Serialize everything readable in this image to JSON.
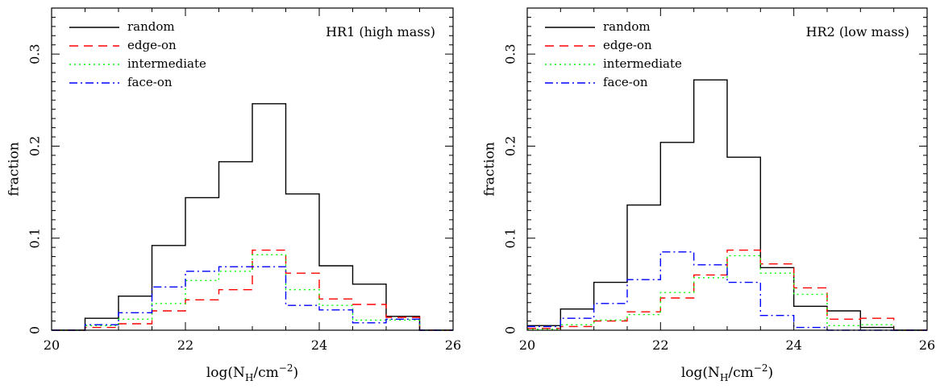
{
  "chart_data": [
    {
      "type": "histogram",
      "annotation": "HR1 (high mass)",
      "xlabel_main": "log(N",
      "xlabel_sub": "H",
      "xlabel_mid": "/cm",
      "xlabel_sup": "−2",
      "xlabel_end": ")",
      "ylabel": "fraction",
      "xlim": [
        20,
        26
      ],
      "ylim": [
        0,
        0.35
      ],
      "x_ticks": [
        20,
        22,
        24,
        26
      ],
      "y_ticks": [
        0,
        0.1,
        0.2,
        0.3
      ],
      "y_tick_labels": [
        "0",
        "0.1",
        "0.2",
        "0.3"
      ],
      "bin_edges": [
        20,
        20.5,
        21,
        21.5,
        22,
        22.5,
        23,
        23.5,
        24,
        24.5,
        25,
        25.5,
        26
      ],
      "legend_position": "top-left",
      "series": [
        {
          "name": "random",
          "color": "#000000",
          "dash": "solid",
          "values": [
            0,
            0.013,
            0.037,
            0.092,
            0.144,
            0.183,
            0.246,
            0.148,
            0.07,
            0.05,
            0.015,
            0,
            0
          ]
        },
        {
          "name": "edge-on",
          "color": "#ff0000",
          "dash": "dashed",
          "values": [
            0,
            0.003,
            0.007,
            0.021,
            0.033,
            0.044,
            0.087,
            0.062,
            0.034,
            0.028,
            0.014,
            0,
            0
          ]
        },
        {
          "name": "intermediate",
          "color": "#00ff00",
          "dash": "dotted",
          "values": [
            0,
            0.005,
            0.012,
            0.029,
            0.054,
            0.064,
            0.082,
            0.044,
            0.027,
            0.011,
            0.011,
            0,
            0
          ]
        },
        {
          "name": "face-on",
          "color": "#0000ff",
          "dash": "dashdot",
          "values": [
            0,
            0.006,
            0.019,
            0.047,
            0.064,
            0.069,
            0.069,
            0.027,
            0.022,
            0.008,
            0.012,
            0,
            0
          ]
        }
      ]
    },
    {
      "type": "histogram",
      "annotation": "HR2 (low mass)",
      "xlabel_main": "log(N",
      "xlabel_sub": "H",
      "xlabel_mid": "/cm",
      "xlabel_sup": "−2",
      "xlabel_end": ")",
      "ylabel": "fraction",
      "xlim": [
        20,
        26
      ],
      "ylim": [
        0,
        0.35
      ],
      "x_ticks": [
        20,
        22,
        24,
        26
      ],
      "y_ticks": [
        0,
        0.1,
        0.2,
        0.3
      ],
      "y_tick_labels": [
        "0",
        "0.1",
        "0.2",
        "0.3"
      ],
      "bin_edges": [
        20,
        20.5,
        21,
        21.5,
        22,
        22.5,
        23,
        23.5,
        24,
        24.5,
        25,
        25.5,
        26
      ],
      "legend_position": "top-left",
      "series": [
        {
          "name": "random",
          "color": "#000000",
          "dash": "solid",
          "values": [
            0.005,
            0.023,
            0.052,
            0.136,
            0.204,
            0.272,
            0.188,
            0.068,
            0.026,
            0.021,
            0.003,
            0,
            0
          ]
        },
        {
          "name": "edge-on",
          "color": "#ff0000",
          "dash": "dashed",
          "values": [
            0.002,
            0.004,
            0.01,
            0.02,
            0.035,
            0.06,
            0.087,
            0.072,
            0.046,
            0.012,
            0.013,
            0,
            0
          ]
        },
        {
          "name": "intermediate",
          "color": "#00ff00",
          "dash": "dotted",
          "values": [
            0.001,
            0.006,
            0.011,
            0.017,
            0.041,
            0.057,
            0.081,
            0.062,
            0.039,
            0.005,
            0.006,
            0,
            0
          ]
        },
        {
          "name": "face-on",
          "color": "#0000ff",
          "dash": "dashdot",
          "values": [
            0.004,
            0.013,
            0.029,
            0.055,
            0.085,
            0.071,
            0.052,
            0.016,
            0.003,
            0,
            0,
            0,
            0
          ]
        }
      ]
    }
  ]
}
